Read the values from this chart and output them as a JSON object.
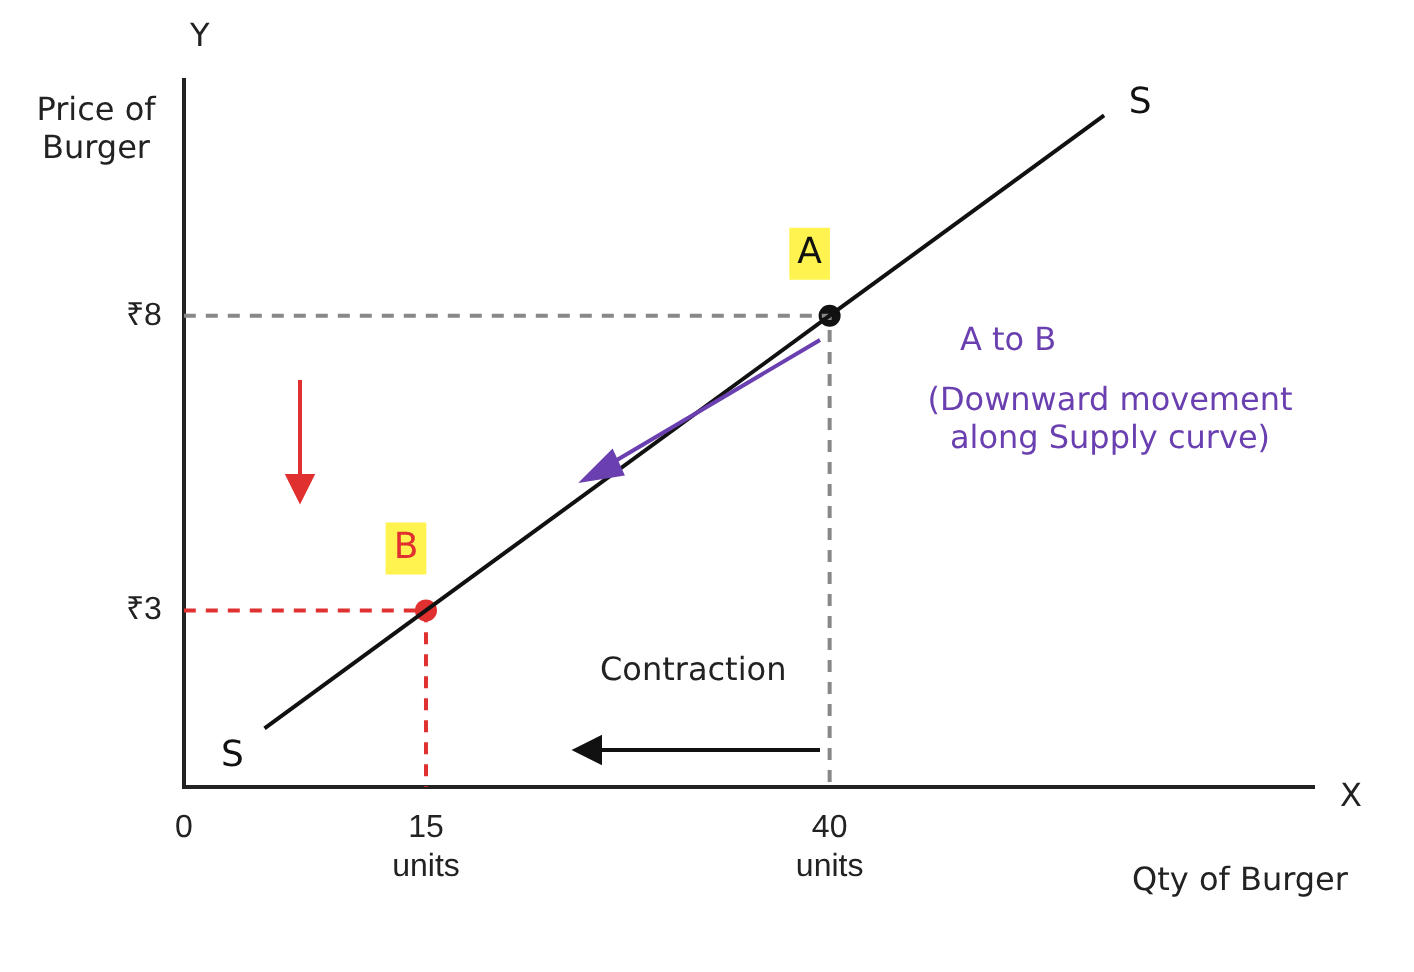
{
  "chart_data": {
    "type": "line",
    "xlabel": "Qty of Burger",
    "ylabel": "Price of Burger",
    "xlim": [
      0,
      70
    ],
    "ylim": [
      0,
      12
    ],
    "xticks": [
      {
        "value": 0,
        "label": "0"
      },
      {
        "value": 15,
        "label": "15 units"
      },
      {
        "value": 40,
        "label": "40 units"
      }
    ],
    "yticks": [
      {
        "value": 3,
        "label": "₹3"
      },
      {
        "value": 8,
        "label": "₹8"
      }
    ],
    "series": [
      {
        "name": "S",
        "color": "#111111",
        "x": [
          5,
          15,
          40,
          57
        ],
        "values": [
          1,
          3,
          8,
          11.4
        ],
        "marker": "none",
        "line_style": "solid"
      },
      {
        "color": "#888888",
        "x": [
          0,
          40,
          40
        ],
        "values": [
          8,
          8,
          0
        ],
        "marker": "none",
        "line_style": "dashed"
      },
      {
        "color": "#e03030",
        "x": [
          0,
          15,
          15
        ],
        "values": [
          3,
          3,
          0
        ],
        "marker": "none",
        "line_style": "dashed"
      },
      {
        "name": "A",
        "type": "scatter",
        "color": "#111111",
        "x": [
          40
        ],
        "values": [
          8
        ],
        "marker": "circle"
      },
      {
        "name": "B",
        "type": "scatter",
        "color": "#e03030",
        "x": [
          15
        ],
        "values": [
          3
        ],
        "marker": "circle"
      }
    ],
    "annotations": [
      "Y",
      "X",
      "A to B",
      "(Downward movement along Supply curve)",
      "Contraction"
    ],
    "grid": false,
    "legend": false
  }
}
